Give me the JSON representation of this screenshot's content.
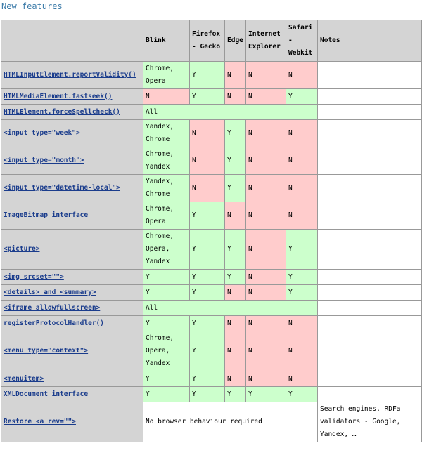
{
  "title": "New features",
  "table": {
    "header": [
      "Blink",
      "Firefox - Gecko",
      "Edge",
      "Internet Explorer",
      "Safari - Webkit",
      "Notes"
    ],
    "rows": [
      {
        "feature": "HTMLInputElement.reportValidity()",
        "cells": [
          {
            "text": "Chrome, Opera",
            "color": "#ccffcc"
          },
          {
            "text": "Y",
            "color": "#ccffcc"
          },
          {
            "text": "N",
            "color": "#ffcccc"
          },
          {
            "text": "N",
            "color": "#ffcccc"
          },
          {
            "text": "N",
            "color": "#ffcccc"
          }
        ]
      },
      {
        "feature": "HTMLMediaElement.fastseek()",
        "cells": [
          {
            "text": "N",
            "color": "#ffcccc"
          },
          {
            "text": "Y",
            "color": "#ccffcc"
          },
          {
            "text": "N",
            "color": "#ffcccc"
          },
          {
            "text": "N",
            "color": "#ffcccc"
          },
          {
            "text": "Y",
            "color": "#ccffcc"
          }
        ]
      },
      {
        "feature": "HTMLElement.forceSpellcheck()",
        "cells": [
          {
            "text": "All",
            "color": "#ccffcc"
          }
        ]
      },
      {
        "feature": "<input type=\"week\">",
        "cells": [
          {
            "text": "Yandex, Chrome",
            "color": "#ccffcc"
          },
          {
            "text": "N",
            "color": "#ffcccc"
          },
          {
            "text": "Y",
            "color": "#ccffcc"
          },
          {
            "text": "N",
            "color": "#ffcccc"
          },
          {
            "text": "N",
            "color": "#ffcccc"
          }
        ]
      },
      {
        "feature": "<input type=\"month\">",
        "cells": [
          {
            "text": "Chrome, Yandex",
            "color": "#ccffcc"
          },
          {
            "text": "N",
            "color": "#ffcccc"
          },
          {
            "text": "Y",
            "color": "#ccffcc"
          },
          {
            "text": "N",
            "color": "#ffcccc"
          },
          {
            "text": "N",
            "color": "#ffcccc"
          }
        ]
      },
      {
        "feature": "<input type=\"datetime-local\">",
        "cells": [
          {
            "text": "Yandex, Chrome",
            "color": "#ccffcc"
          },
          {
            "text": "N",
            "color": "#ffcccc"
          },
          {
            "text": "Y",
            "color": "#ccffcc"
          },
          {
            "text": "N",
            "color": "#ffcccc"
          },
          {
            "text": "N",
            "color": "#ffcccc"
          }
        ]
      },
      {
        "feature": "ImageBitmap interface",
        "cells": [
          {
            "text": "Chrome, Opera",
            "color": "#ccffcc"
          },
          {
            "text": "Y",
            "color": "#ccffcc"
          },
          {
            "text": "N",
            "color": "#ffcccc"
          },
          {
            "text": "N",
            "color": "#ffcccc"
          },
          {
            "text": "N",
            "color": "#ffcccc"
          }
        ]
      },
      {
        "feature": "<picture>",
        "cells": [
          {
            "text": "Chrome, Opera, Yandex",
            "color": "#ccffcc"
          },
          {
            "text": "Y",
            "color": "#ccffcc"
          },
          {
            "text": "Y",
            "color": "#ccffcc"
          },
          {
            "text": "N",
            "color": "#ffcccc"
          },
          {
            "text": "Y",
            "color": "#ccffcc"
          }
        ]
      },
      {
        "feature": "<img srcset=\"\">",
        "cells": [
          {
            "text": "Y",
            "color": "#ccffcc"
          },
          {
            "text": "Y",
            "color": "#ccffcc"
          },
          {
            "text": "Y",
            "color": "#ccffcc"
          },
          {
            "text": "N",
            "color": "#ffcccc"
          },
          {
            "text": "Y",
            "color": "#ccffcc"
          }
        ]
      },
      {
        "feature": "<details> and <summary>",
        "cells": [
          {
            "text": "Y",
            "color": "#ccffcc"
          },
          {
            "text": "Y",
            "color": "#ccffcc"
          },
          {
            "text": "N",
            "color": "#ffcccc"
          },
          {
            "text": "N",
            "color": "#ffcccc"
          },
          {
            "text": "Y",
            "color": "#ccffcc"
          }
        ]
      },
      {
        "feature": "<iframe allowfullscreen>",
        "cells": [
          {
            "text": "All",
            "color": "#ccffcc"
          }
        ]
      },
      {
        "feature": "registerProtocolHandler()",
        "cells": [
          {
            "text": "Y",
            "color": "#ccffcc"
          },
          {
            "text": "Y",
            "color": "#ccffcc"
          },
          {
            "text": "N",
            "color": "#ffcccc"
          },
          {
            "text": "N",
            "color": "#ffcccc"
          },
          {
            "text": "N",
            "color": "#ffcccc"
          }
        ]
      },
      {
        "feature": "<menu type=\"context\">",
        "cells": [
          {
            "text": "Chrome, Opera, Yandex",
            "color": "#ccffcc"
          },
          {
            "text": "Y",
            "color": "#ccffcc"
          },
          {
            "text": "N",
            "color": "#ffcccc"
          },
          {
            "text": "N",
            "color": "#ffcccc"
          },
          {
            "text": "N",
            "color": "#ffcccc"
          }
        ]
      },
      {
        "feature": "<menuitem>",
        "cells": [
          {
            "text": "Y",
            "color": "#ccffcc"
          },
          {
            "text": "Y",
            "color": "#ccffcc"
          },
          {
            "text": "N",
            "color": "#ffcccc"
          },
          {
            "text": "N",
            "color": "#ffcccc"
          },
          {
            "text": "N",
            "color": "#ffcccc"
          }
        ]
      },
      {
        "feature": "XMLDocument interface",
        "cells": [
          {
            "text": "Y",
            "color": "#ccffcc"
          },
          {
            "text": "Y",
            "color": "#ccffcc"
          },
          {
            "text": "Y",
            "color": "#ccffcc"
          },
          {
            "text": "Y",
            "color": "#ccffcc"
          },
          {
            "text": "Y",
            "color": "#ccffcc"
          }
        ]
      },
      {
        "feature": "Restore <a rev=\"\">",
        "cells": [
          {
            "text": "No browser behaviour required",
            "color": "#ffffff"
          }
        ],
        "notes": "Search engines, RDFa validators - Google, Yandex, …"
      }
    ]
  }
}
